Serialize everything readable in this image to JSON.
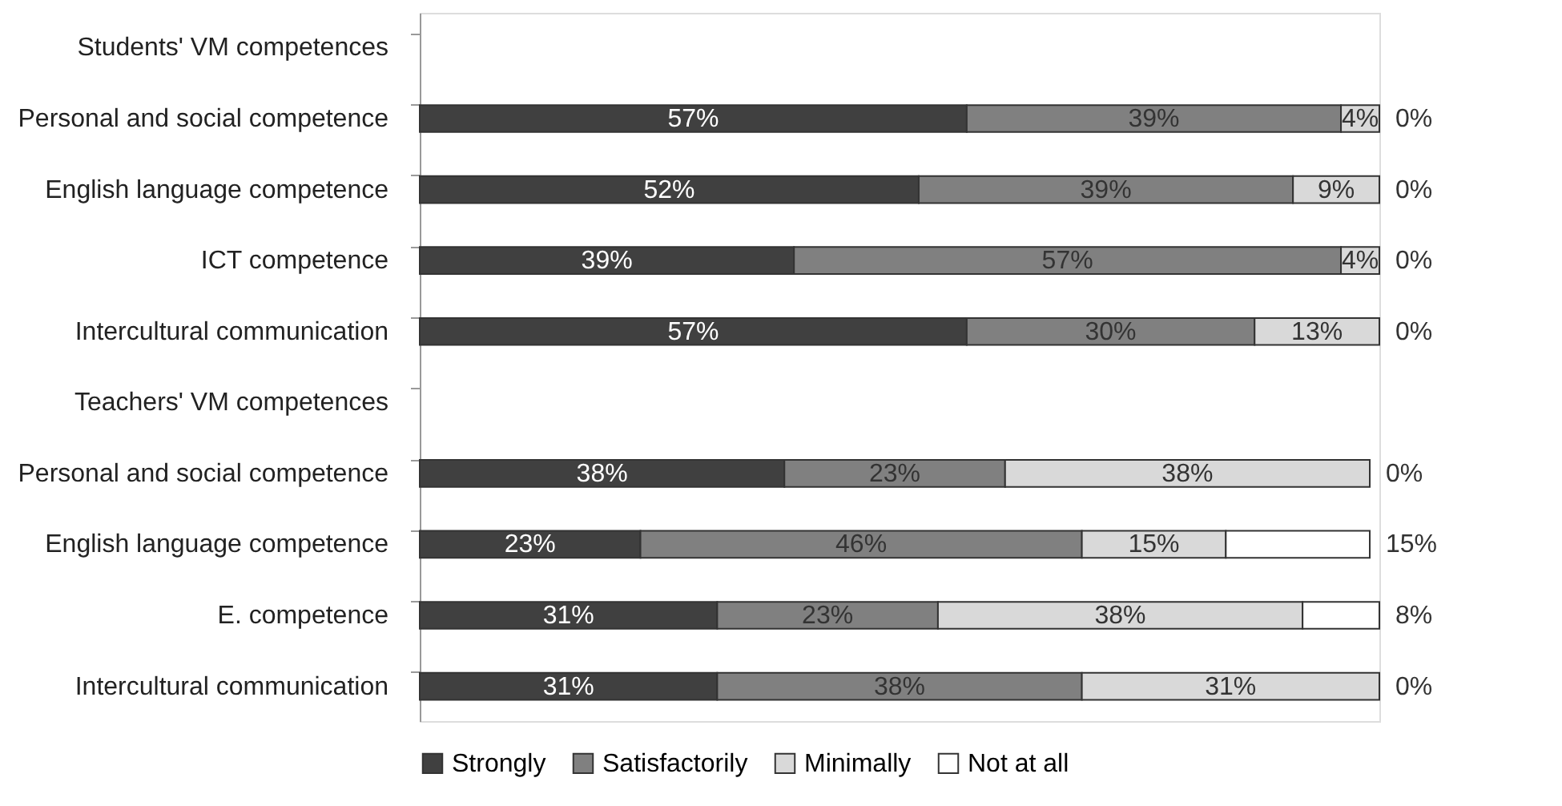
{
  "chart_data": {
    "type": "bar",
    "orientation": "horizontal",
    "stacked": true,
    "legend": "bottom",
    "grid": false,
    "categories": [
      "Students' VM competences",
      "Personal and social competence",
      "English language competence",
      "ICT competence",
      "Intercultural communication",
      "Teachers' VM competences",
      "Personal and social competence",
      "English language competence",
      "E. competence",
      "Intercultural communication"
    ],
    "series": [
      {
        "name": "Strongly",
        "color": "#404040",
        "values": [
          null,
          57,
          52,
          39,
          57,
          null,
          38,
          23,
          31,
          31
        ],
        "value_labels": [
          null,
          "57%",
          "52%",
          "39%",
          "57%",
          null,
          "38%",
          "23%",
          "31%",
          "31%"
        ]
      },
      {
        "name": "Satisfactorily",
        "color": "#808080",
        "values": [
          null,
          39,
          39,
          57,
          30,
          null,
          23,
          46,
          23,
          38
        ],
        "value_labels": [
          null,
          "39%",
          "39%",
          "57%",
          "30%",
          null,
          "23%",
          "46%",
          "23%",
          "38%"
        ]
      },
      {
        "name": "Minimally",
        "color": "#d9d9d9",
        "values": [
          null,
          4,
          9,
          4,
          13,
          null,
          38,
          15,
          38,
          31
        ],
        "value_labels": [
          null,
          "4%",
          "9%",
          "4%",
          "13%",
          null,
          "38%",
          "15%",
          "38%",
          "31%"
        ]
      },
      {
        "name": "Not at all",
        "color": "#ffffff",
        "values": [
          null,
          0,
          0,
          0,
          0,
          null,
          0,
          15,
          8,
          0
        ],
        "value_labels": [
          null,
          "0%",
          "0%",
          "0%",
          "0%",
          null,
          "0%",
          "15%",
          "8%",
          "0%"
        ]
      }
    ]
  }
}
